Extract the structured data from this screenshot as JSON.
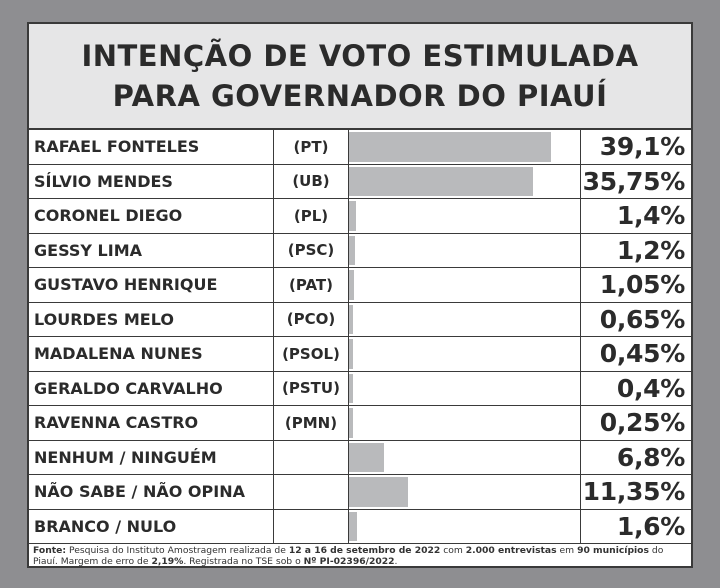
{
  "title": {
    "line1": "INTENÇÃO DE VOTO ESTIMULADA",
    "line2": "PARA GOVERNADOR DO PIAUÍ"
  },
  "chart_data": {
    "type": "bar",
    "title": "INTENÇÃO DE VOTO ESTIMULADA PARA GOVERNADOR DO PIAUÍ",
    "xlim": [
      0,
      45
    ],
    "rows": [
      {
        "name": "RAFAEL FONTELES",
        "party": "(PT)",
        "value": 39.1,
        "label": "39,1%"
      },
      {
        "name": "SÍLVIO MENDES",
        "party": "(UB)",
        "value": 35.75,
        "label": "35,75%"
      },
      {
        "name": "CORONEL DIEGO",
        "party": "(PL)",
        "value": 1.4,
        "label": "1,4%"
      },
      {
        "name": "GESSY LIMA",
        "party": "(PSC)",
        "value": 1.2,
        "label": "1,2%"
      },
      {
        "name": "GUSTAVO HENRIQUE",
        "party": "(PAT)",
        "value": 1.05,
        "label": "1,05%"
      },
      {
        "name": "LOURDES MELO",
        "party": "(PCO)",
        "value": 0.65,
        "label": "0,65%"
      },
      {
        "name": "MADALENA NUNES",
        "party": "(PSOL)",
        "value": 0.45,
        "label": "0,45%"
      },
      {
        "name": "GERALDO CARVALHO",
        "party": "(PSTU)",
        "value": 0.4,
        "label": "0,4%"
      },
      {
        "name": "RAVENNA CASTRO",
        "party": "(PMN)",
        "value": 0.25,
        "label": "0,25%"
      },
      {
        "name": "NENHUM / NINGUÉM",
        "party": "",
        "value": 6.8,
        "label": "6,8%"
      },
      {
        "name": "NÃO SABE / NÃO OPINA",
        "party": "",
        "value": 11.35,
        "label": "11,35%"
      },
      {
        "name": "BRANCO / NULO",
        "party": "",
        "value": 1.6,
        "label": "1,6%"
      }
    ]
  },
  "footer": {
    "fonte_label": "Fonte:",
    "text1": " Pesquisa do Instituto Amostragem realizada de ",
    "dates": "12 a 16 de setembro de 2022",
    "text2": "  com ",
    "interviews": "2.000 entrevistas",
    "text3": " em ",
    "municipalities": "90 municípios",
    "text4": " do Piauí. Margem de erro de ",
    "margin": "2,19%",
    "text5": ". Registrada no TSE sob o ",
    "registry": "Nº PI-02396/2022",
    "text6": "."
  },
  "colors": {
    "background": "#8e8e91",
    "header_bg": "#e6e6e7",
    "bar": "#b9babc",
    "text": "#2b2b2b"
  }
}
